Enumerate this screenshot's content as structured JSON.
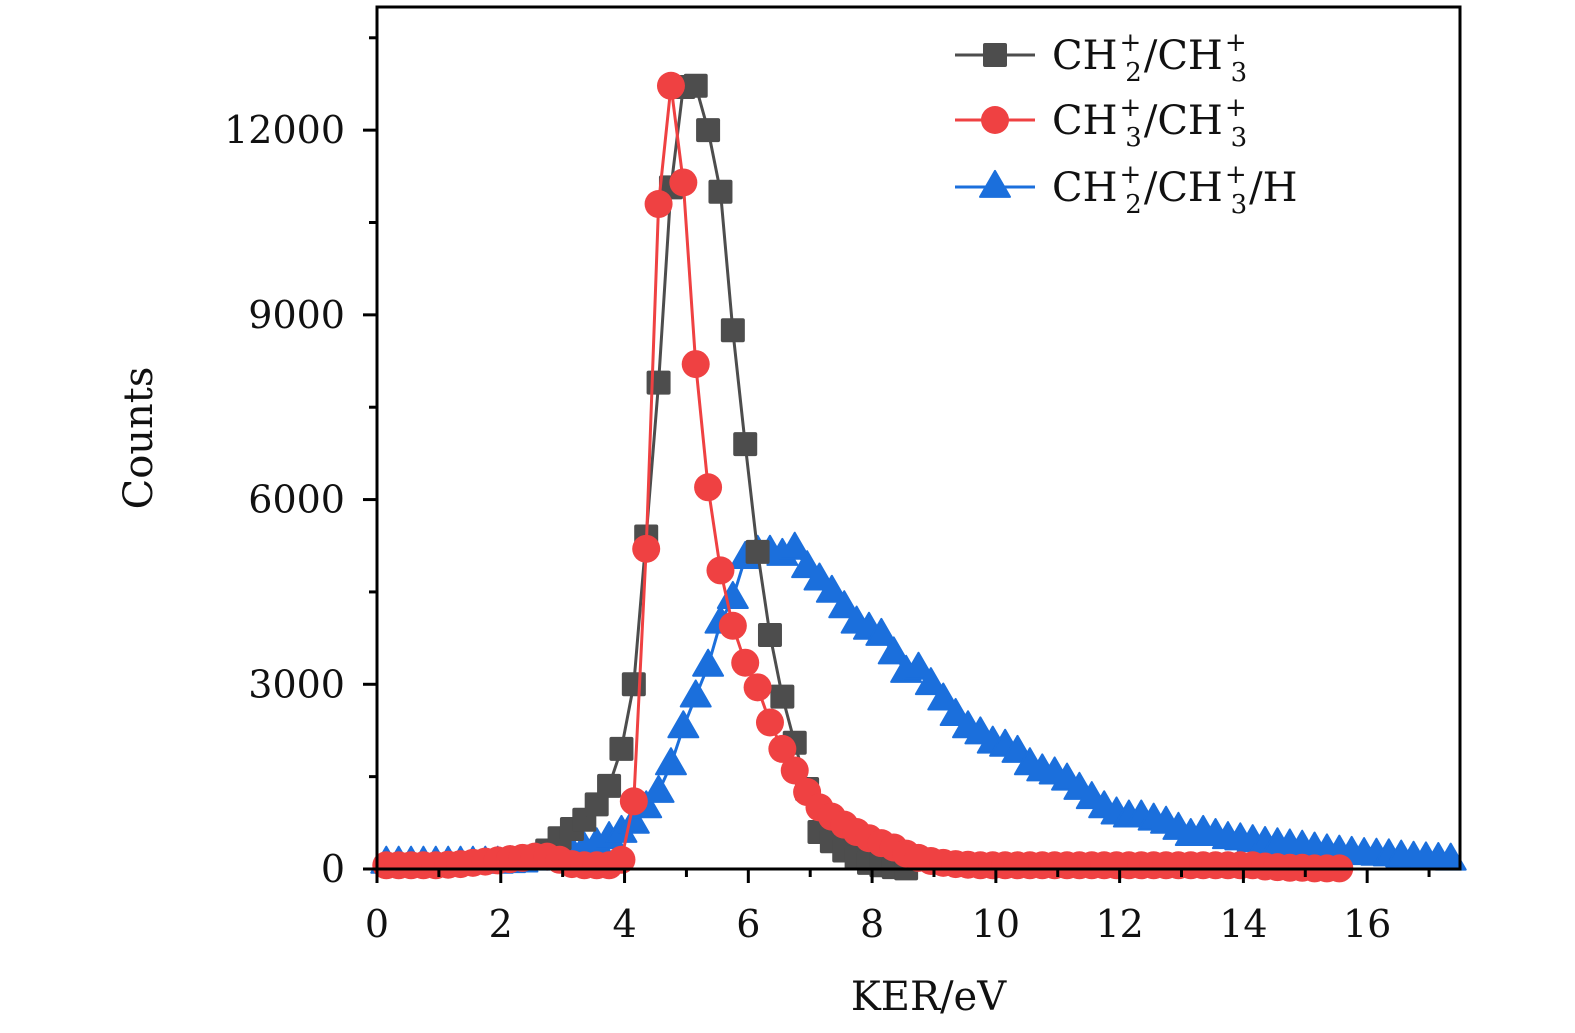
{
  "chart_data": {
    "type": "line",
    "title": "",
    "xlabel": "KER/eV",
    "ylabel": "Counts",
    "xlim": [
      0,
      17.5
    ],
    "ylim": [
      0,
      14000
    ],
    "xticks": [
      0,
      2,
      4,
      6,
      8,
      10,
      12,
      14,
      16
    ],
    "xtick_labels": [
      "0",
      "2",
      "4",
      "6",
      "8",
      "10",
      "12",
      "14",
      "16"
    ],
    "yticks": [
      0,
      3000,
      6000,
      9000,
      12000
    ],
    "ytick_labels": [
      "0",
      "3000",
      "6000",
      "9000",
      "12000"
    ],
    "grid": false,
    "legend_position": "top-right",
    "series": [
      {
        "name": "CH2+/CH3+",
        "legend": {
          "main1": "CH",
          "sub1": "2",
          "sup1": "+",
          "sep": "/",
          "main2": "CH",
          "sub2": "3",
          "sup2": "+",
          "tail": ""
        },
        "color": "#4d4d4d",
        "marker": "square",
        "x": [
          2.55,
          2.75,
          2.95,
          3.15,
          3.35,
          3.55,
          3.75,
          3.95,
          4.15,
          4.35,
          4.55,
          4.75,
          4.95,
          5.15,
          5.35,
          5.55,
          5.75,
          5.95,
          6.15,
          6.35,
          6.55,
          6.75,
          6.95,
          7.15,
          7.35,
          7.55,
          7.75,
          7.95,
          8.15,
          8.35,
          8.55
        ],
        "y": [
          200,
          300,
          500,
          650,
          800,
          1050,
          1350,
          1950,
          3000,
          5400,
          7900,
          11070,
          12700,
          12720,
          12000,
          11000,
          8750,
          6900,
          5150,
          3800,
          2800,
          2050,
          1300,
          600,
          450,
          300,
          180,
          100,
          60,
          30,
          10
        ]
      },
      {
        "name": "CH3+/CH3+",
        "legend": {
          "main1": "CH",
          "sub1": "3",
          "sup1": "+",
          "sep": "/",
          "main2": "CH",
          "sub2": "3",
          "sup2": "+",
          "tail": ""
        },
        "color": "#ef4142",
        "marker": "circle",
        "x": [
          0.15,
          0.35,
          0.55,
          0.75,
          0.95,
          1.15,
          1.35,
          1.55,
          1.75,
          1.95,
          2.15,
          2.35,
          2.55,
          2.75,
          2.95,
          3.15,
          3.35,
          3.55,
          3.75,
          3.95,
          4.15,
          4.35,
          4.55,
          4.75,
          4.95,
          5.15,
          5.35,
          5.55,
          5.75,
          5.95,
          6.15,
          6.35,
          6.55,
          6.75,
          6.95,
          7.15,
          7.35,
          7.55,
          7.75,
          7.95,
          8.15,
          8.35,
          8.55,
          8.75,
          8.95,
          9.15,
          9.35,
          9.55,
          9.75,
          9.95,
          10.15,
          10.35,
          10.55,
          10.75,
          10.95,
          11.15,
          11.35,
          11.55,
          11.75,
          11.95,
          12.15,
          12.35,
          12.55,
          12.75,
          12.95,
          13.15,
          13.35,
          13.55,
          13.75,
          13.95,
          14.15,
          14.35,
          14.55,
          14.75,
          14.95,
          15.15,
          15.35,
          15.55
        ],
        "y": [
          60,
          60,
          60,
          60,
          60,
          70,
          80,
          100,
          120,
          140,
          160,
          180,
          200,
          200,
          150,
          80,
          60,
          60,
          60,
          150,
          1100,
          5200,
          10800,
          12720,
          11150,
          8200,
          6200,
          4850,
          3950,
          3350,
          2950,
          2380,
          1950,
          1600,
          1250,
          1000,
          850,
          720,
          600,
          500,
          420,
          350,
          250,
          180,
          130,
          100,
          80,
          70,
          60,
          60,
          60,
          60,
          60,
          60,
          60,
          60,
          60,
          60,
          60,
          60,
          60,
          60,
          60,
          60,
          60,
          60,
          60,
          60,
          60,
          60,
          60,
          40,
          30,
          20,
          20,
          10,
          10,
          10
        ]
      },
      {
        "name": "CH2+/CH3+/H",
        "legend": {
          "main1": "CH",
          "sub1": "2",
          "sup1": "+",
          "sep": "/",
          "main2": "CH",
          "sub2": "3",
          "sup2": "+",
          "tail": "/H"
        },
        "color": "#1b6fdc",
        "marker": "triangle",
        "x": [
          0.15,
          0.35,
          0.55,
          0.75,
          0.95,
          1.15,
          1.35,
          1.55,
          1.75,
          1.95,
          2.15,
          2.35,
          2.55,
          2.75,
          2.95,
          3.15,
          3.35,
          3.55,
          3.75,
          3.95,
          4.15,
          4.35,
          4.55,
          4.75,
          4.95,
          5.15,
          5.35,
          5.55,
          5.75,
          5.95,
          6.15,
          6.35,
          6.55,
          6.75,
          6.95,
          7.15,
          7.35,
          7.55,
          7.75,
          7.95,
          8.15,
          8.35,
          8.55,
          8.75,
          8.95,
          9.15,
          9.35,
          9.55,
          9.75,
          9.95,
          10.15,
          10.35,
          10.55,
          10.75,
          10.95,
          11.15,
          11.35,
          11.55,
          11.75,
          11.95,
          12.15,
          12.35,
          12.55,
          12.75,
          12.95,
          13.15,
          13.35,
          13.55,
          13.75,
          13.95,
          14.15,
          14.35,
          14.55,
          14.75,
          14.95,
          15.15,
          15.35,
          15.55,
          15.75,
          15.95,
          16.15,
          16.35,
          16.55,
          16.75,
          16.95,
          17.15,
          17.35
        ],
        "y": [
          100,
          100,
          100,
          100,
          100,
          100,
          100,
          100,
          100,
          100,
          110,
          120,
          150,
          180,
          220,
          270,
          330,
          400,
          500,
          600,
          750,
          1000,
          1250,
          1700,
          2300,
          2800,
          3300,
          4000,
          4400,
          5050,
          5150,
          5150,
          5100,
          5200,
          4900,
          4700,
          4500,
          4250,
          4000,
          3900,
          3800,
          3500,
          3200,
          3250,
          3000,
          2750,
          2500,
          2300,
          2200,
          2050,
          2000,
          1900,
          1700,
          1600,
          1550,
          1450,
          1300,
          1150,
          1000,
          900,
          850,
          850,
          800,
          750,
          650,
          550,
          600,
          550,
          500,
          480,
          450,
          420,
          400,
          380,
          360,
          330,
          300,
          280,
          260,
          240,
          230,
          220,
          200,
          180,
          170,
          160,
          150
        ]
      }
    ]
  }
}
